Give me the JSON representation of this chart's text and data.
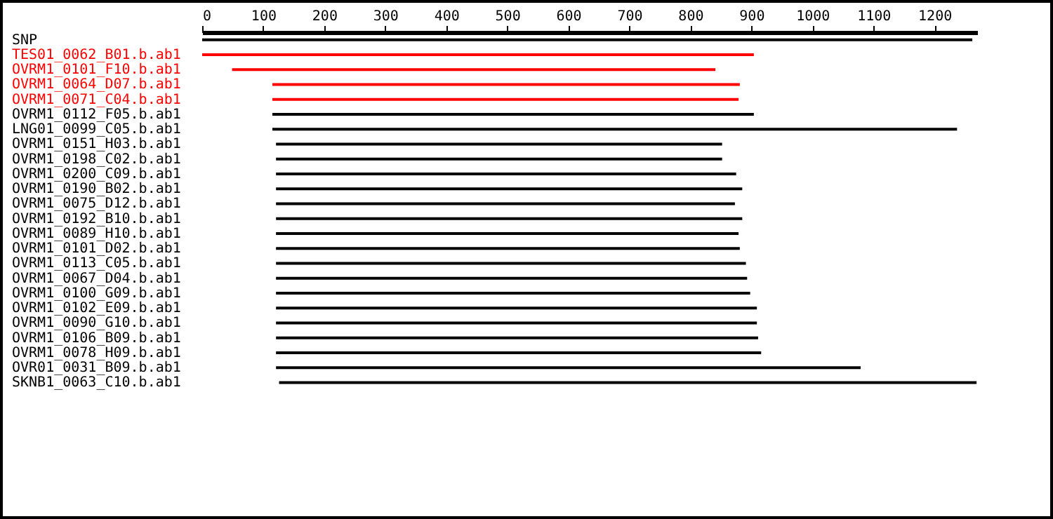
{
  "chart_data": {
    "type": "bar",
    "orientation": "horizontal",
    "categories": [
      "SNP",
      "TES01_0062_B01.b.ab1",
      "OVRM1_0101_F10.b.ab1",
      "OVRM1_0064_D07.b.ab1",
      "OVRM1_0071_C04.b.ab1",
      "OVRM1_0112_F05.b.ab1",
      "LNG01_0099_C05.b.ab1",
      "OVRM1_0151_H03.b.ab1",
      "OVRM1_0198_C02.b.ab1",
      "OVRM1_0200_C09.b.ab1",
      "OVRM1_0190_B02.b.ab1",
      "OVRM1_0075_D12.b.ab1",
      "OVRM1_0192_B10.b.ab1",
      "OVRM1_0089_H10.b.ab1",
      "OVRM1_0101_D02.b.ab1",
      "OVRM1_0113_C05.b.ab1",
      "OVRM1_0067_D04.b.ab1",
      "OVRM1_0100_G09.b.ab1",
      "OVRM1_0102_E09.b.ab1",
      "OVRM1_0090_G10.b.ab1",
      "OVRM1_0106_B09.b.ab1",
      "OVRM1_0078_H09.b.ab1",
      "OVR01_0031_B09.b.ab1",
      "SKNB1_0063_C10.b.ab1"
    ],
    "series": [
      {
        "color": "#000000",
        "base": [
          0,
          null,
          null,
          null,
          null,
          null,
          null,
          null,
          null,
          null,
          null,
          null,
          null,
          null,
          null,
          null,
          null,
          null,
          null,
          null,
          null,
          null,
          null,
          null
        ],
        "values": [
          1262,
          null,
          null,
          null,
          null,
          null,
          null,
          null,
          null,
          null,
          null,
          null,
          null,
          null,
          null,
          null,
          null,
          null,
          null,
          null,
          null,
          null,
          null,
          null
        ]
      },
      {
        "color": "#ff0000",
        "base": [
          null,
          0,
          49,
          115,
          115,
          null,
          null,
          null,
          null,
          null,
          null,
          null,
          null,
          null,
          null,
          null,
          null,
          null,
          null,
          null,
          null,
          null,
          null,
          null
        ],
        "values": [
          null,
          904,
          792,
          766,
          764,
          null,
          null,
          null,
          null,
          null,
          null,
          null,
          null,
          null,
          null,
          null,
          null,
          null,
          null,
          null,
          null,
          null,
          null,
          null
        ]
      },
      {
        "color": "#000000",
        "base": [
          null,
          null,
          null,
          null,
          null,
          115,
          115,
          121,
          121,
          121,
          121,
          121,
          121,
          121,
          121,
          121,
          121,
          121,
          121,
          121,
          121,
          121,
          121,
          126
        ],
        "values": [
          null,
          null,
          null,
          null,
          null,
          789,
          1122,
          731,
          731,
          754,
          764,
          752,
          764,
          758,
          760,
          770,
          772,
          777,
          788,
          788,
          790,
          795,
          958,
          1143
        ]
      }
    ],
    "xlim": [
      0,
      1270
    ],
    "xticks": [
      0,
      100,
      200,
      300,
      400,
      500,
      600,
      700,
      800,
      900,
      1000,
      1100,
      1200
    ],
    "grid": false
  }
}
